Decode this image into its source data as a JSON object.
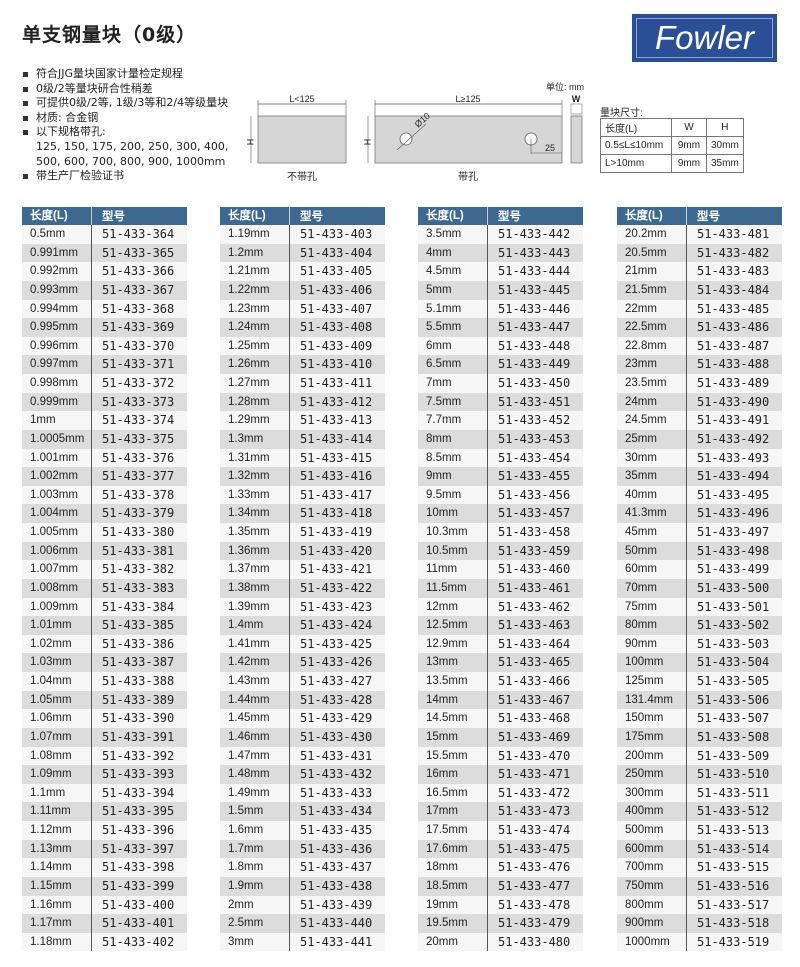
{
  "title": "单支钢量块（0级）",
  "logo": "Fowler",
  "bullets": [
    "符合JJG量块国家计量检定规程",
    "0级/2等量块研合性稍差",
    "可提供0级/2等, 1级/3等和2/4等级量块",
    "材质: 合金钢",
    "以下规格带孔:",
    "125, 150, 175, 200, 250, 300, 400,",
    "500, 600, 700, 800, 900, 1000mm",
    "带生产厂检验证书"
  ],
  "diagram": {
    "unit": "单位: mm",
    "no_hole_length": "L<125",
    "hole_length": "L≥125",
    "width": "W",
    "height": "H",
    "hole_dia": "Ø10",
    "hole_offset": "25",
    "no_hole_caption": "不带孔",
    "hole_caption": "带孔"
  },
  "dimensions": {
    "label": "量块尺寸:",
    "headers": [
      "长度(L)",
      "W",
      "H"
    ],
    "rows": [
      [
        "0.5≤L≤10mm",
        "9mm",
        "30mm"
      ],
      [
        "L>10mm",
        "9mm",
        "35mm"
      ]
    ]
  },
  "table_headers": [
    "长度(L)",
    "型号"
  ],
  "tables": [
    [
      [
        "0.5mm",
        "51-433-364"
      ],
      [
        "0.991mm",
        "51-433-365"
      ],
      [
        "0.992mm",
        "51-433-366"
      ],
      [
        "0.993mm",
        "51-433-367"
      ],
      [
        "0.994mm",
        "51-433-368"
      ],
      [
        "0.995mm",
        "51-433-369"
      ],
      [
        "0.996mm",
        "51-433-370"
      ],
      [
        "0.997mm",
        "51-433-371"
      ],
      [
        "0.998mm",
        "51-433-372"
      ],
      [
        "0.999mm",
        "51-433-373"
      ],
      [
        "1mm",
        "51-433-374"
      ],
      [
        "1.0005mm",
        "51-433-375"
      ],
      [
        "1.001mm",
        "51-433-376"
      ],
      [
        "1.002mm",
        "51-433-377"
      ],
      [
        "1.003mm",
        "51-433-378"
      ],
      [
        "1.004mm",
        "51-433-379"
      ],
      [
        "1.005mm",
        "51-433-380"
      ],
      [
        "1.006mm",
        "51-433-381"
      ],
      [
        "1.007mm",
        "51-433-382"
      ],
      [
        "1.008mm",
        "51-433-383"
      ],
      [
        "1.009mm",
        "51-433-384"
      ],
      [
        "1.01mm",
        "51-433-385"
      ],
      [
        "1.02mm",
        "51-433-386"
      ],
      [
        "1.03mm",
        "51-433-387"
      ],
      [
        "1.04mm",
        "51-433-388"
      ],
      [
        "1.05mm",
        "51-433-389"
      ],
      [
        "1.06mm",
        "51-433-390"
      ],
      [
        "1.07mm",
        "51-433-391"
      ],
      [
        "1.08mm",
        "51-433-392"
      ],
      [
        "1.09mm",
        "51-433-393"
      ],
      [
        "1.1mm",
        "51-433-394"
      ],
      [
        "1.11mm",
        "51-433-395"
      ],
      [
        "1.12mm",
        "51-433-396"
      ],
      [
        "1.13mm",
        "51-433-397"
      ],
      [
        "1.14mm",
        "51-433-398"
      ],
      [
        "1.15mm",
        "51-433-399"
      ],
      [
        "1.16mm",
        "51-433-400"
      ],
      [
        "1.17mm",
        "51-433-401"
      ],
      [
        "1.18mm",
        "51-433-402"
      ]
    ],
    [
      [
        "1.19mm",
        "51-433-403"
      ],
      [
        "1.2mm",
        "51-433-404"
      ],
      [
        "1.21mm",
        "51-433-405"
      ],
      [
        "1.22mm",
        "51-433-406"
      ],
      [
        "1.23mm",
        "51-433-407"
      ],
      [
        "1.24mm",
        "51-433-408"
      ],
      [
        "1.25mm",
        "51-433-409"
      ],
      [
        "1.26mm",
        "51-433-410"
      ],
      [
        "1.27mm",
        "51-433-411"
      ],
      [
        "1.28mm",
        "51-433-412"
      ],
      [
        "1.29mm",
        "51-433-413"
      ],
      [
        "1.3mm",
        "51-433-414"
      ],
      [
        "1.31mm",
        "51-433-415"
      ],
      [
        "1.32mm",
        "51-433-416"
      ],
      [
        "1.33mm",
        "51-433-417"
      ],
      [
        "1.34mm",
        "51-433-418"
      ],
      [
        "1.35mm",
        "51-433-419"
      ],
      [
        "1.36mm",
        "51-433-420"
      ],
      [
        "1.37mm",
        "51-433-421"
      ],
      [
        "1.38mm",
        "51-433-422"
      ],
      [
        "1.39mm",
        "51-433-423"
      ],
      [
        "1.4mm",
        "51-433-424"
      ],
      [
        "1.41mm",
        "51-433-425"
      ],
      [
        "1.42mm",
        "51-433-426"
      ],
      [
        "1.43mm",
        "51-433-427"
      ],
      [
        "1.44mm",
        "51-433-428"
      ],
      [
        "1.45mm",
        "51-433-429"
      ],
      [
        "1.46mm",
        "51-433-430"
      ],
      [
        "1.47mm",
        "51-433-431"
      ],
      [
        "1.48mm",
        "51-433-432"
      ],
      [
        "1.49mm",
        "51-433-433"
      ],
      [
        "1.5mm",
        "51-433-434"
      ],
      [
        "1.6mm",
        "51-433-435"
      ],
      [
        "1.7mm",
        "51-433-436"
      ],
      [
        "1.8mm",
        "51-433-437"
      ],
      [
        "1.9mm",
        "51-433-438"
      ],
      [
        "2mm",
        "51-433-439"
      ],
      [
        "2.5mm",
        "51-433-440"
      ],
      [
        "3mm",
        "51-433-441"
      ]
    ],
    [
      [
        "3.5mm",
        "51-433-442"
      ],
      [
        "4mm",
        "51-433-443"
      ],
      [
        "4.5mm",
        "51-433-444"
      ],
      [
        "5mm",
        "51-433-445"
      ],
      [
        "5.1mm",
        "51-433-446"
      ],
      [
        "5.5mm",
        "51-433-447"
      ],
      [
        "6mm",
        "51-433-448"
      ],
      [
        "6.5mm",
        "51-433-449"
      ],
      [
        "7mm",
        "51-433-450"
      ],
      [
        "7.5mm",
        "51-433-451"
      ],
      [
        "7.7mm",
        "51-433-452"
      ],
      [
        "8mm",
        "51-433-453"
      ],
      [
        "8.5mm",
        "51-433-454"
      ],
      [
        "9mm",
        "51-433-455"
      ],
      [
        "9.5mm",
        "51-433-456"
      ],
      [
        "10mm",
        "51-433-457"
      ],
      [
        "10.3mm",
        "51-433-458"
      ],
      [
        "10.5mm",
        "51-433-459"
      ],
      [
        "11mm",
        "51-433-460"
      ],
      [
        "11.5mm",
        "51-433-461"
      ],
      [
        "12mm",
        "51-433-462"
      ],
      [
        "12.5mm",
        "51-433-463"
      ],
      [
        "12.9mm",
        "51-433-464"
      ],
      [
        "13mm",
        "51-433-465"
      ],
      [
        "13.5mm",
        "51-433-466"
      ],
      [
        "14mm",
        "51-433-467"
      ],
      [
        "14.5mm",
        "51-433-468"
      ],
      [
        "15mm",
        "51-433-469"
      ],
      [
        "15.5mm",
        "51-433-470"
      ],
      [
        "16mm",
        "51-433-471"
      ],
      [
        "16.5mm",
        "51-433-472"
      ],
      [
        "17mm",
        "51-433-473"
      ],
      [
        "17.5mm",
        "51-433-474"
      ],
      [
        "17.6mm",
        "51-433-475"
      ],
      [
        "18mm",
        "51-433-476"
      ],
      [
        "18.5mm",
        "51-433-477"
      ],
      [
        "19mm",
        "51-433-478"
      ],
      [
        "19.5mm",
        "51-433-479"
      ],
      [
        "20mm",
        "51-433-480"
      ]
    ],
    [
      [
        "20.2mm",
        "51-433-481"
      ],
      [
        "20.5mm",
        "51-433-482"
      ],
      [
        "21mm",
        "51-433-483"
      ],
      [
        "21.5mm",
        "51-433-484"
      ],
      [
        "22mm",
        "51-433-485"
      ],
      [
        "22.5mm",
        "51-433-486"
      ],
      [
        "22.8mm",
        "51-433-487"
      ],
      [
        "23mm",
        "51-433-488"
      ],
      [
        "23.5mm",
        "51-433-489"
      ],
      [
        "24mm",
        "51-433-490"
      ],
      [
        "24.5mm",
        "51-433-491"
      ],
      [
        "25mm",
        "51-433-492"
      ],
      [
        "30mm",
        "51-433-493"
      ],
      [
        "35mm",
        "51-433-494"
      ],
      [
        "40mm",
        "51-433-495"
      ],
      [
        "41.3mm",
        "51-433-496"
      ],
      [
        "45mm",
        "51-433-497"
      ],
      [
        "50mm",
        "51-433-498"
      ],
      [
        "60mm",
        "51-433-499"
      ],
      [
        "70mm",
        "51-433-500"
      ],
      [
        "75mm",
        "51-433-501"
      ],
      [
        "80mm",
        "51-433-502"
      ],
      [
        "90mm",
        "51-433-503"
      ],
      [
        "100mm",
        "51-433-504"
      ],
      [
        "125mm",
        "51-433-505"
      ],
      [
        "131.4mm",
        "51-433-506"
      ],
      [
        "150mm",
        "51-433-507"
      ],
      [
        "175mm",
        "51-433-508"
      ],
      [
        "200mm",
        "51-433-509"
      ],
      [
        "250mm",
        "51-433-510"
      ],
      [
        "300mm",
        "51-433-511"
      ],
      [
        "400mm",
        "51-433-512"
      ],
      [
        "500mm",
        "51-433-513"
      ],
      [
        "600mm",
        "51-433-514"
      ],
      [
        "700mm",
        "51-433-515"
      ],
      [
        "750mm",
        "51-433-516"
      ],
      [
        "800mm",
        "51-433-517"
      ],
      [
        "900mm",
        "51-433-518"
      ],
      [
        "1000mm",
        "51-433-519"
      ]
    ]
  ]
}
